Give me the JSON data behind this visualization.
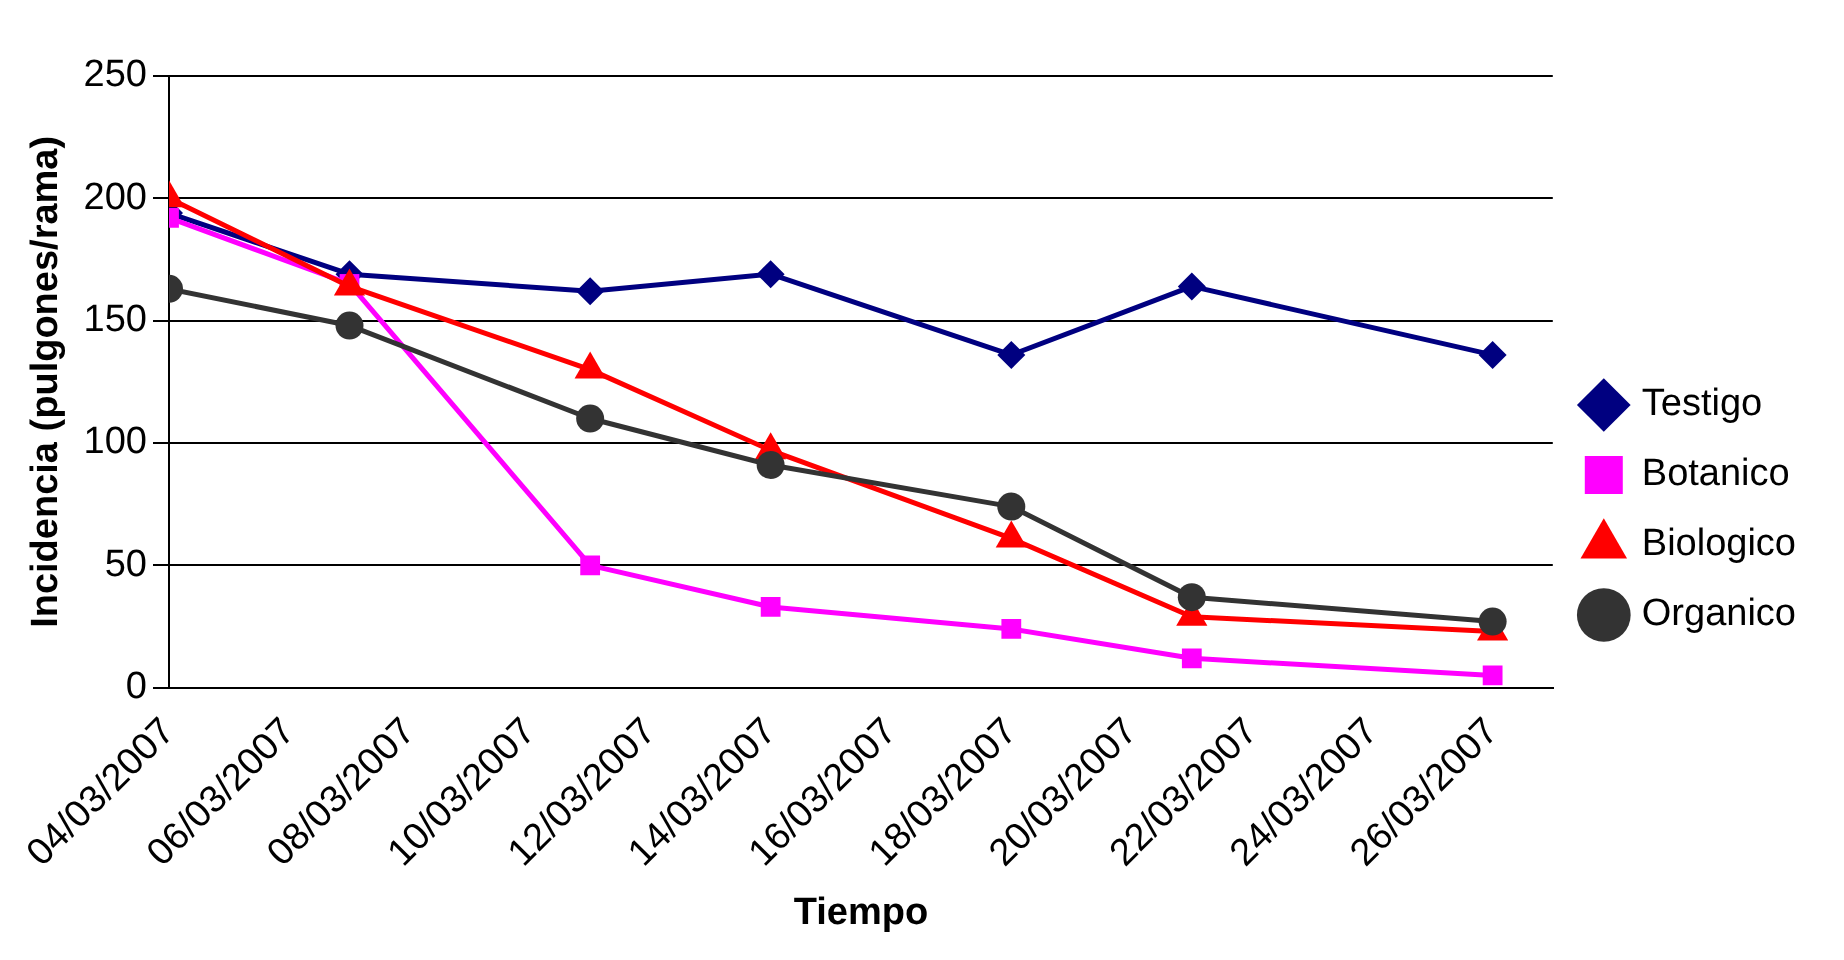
{
  "chart_data": {
    "type": "line",
    "xlabel": "Tiempo",
    "ylabel": "Incidencia (pulgones/rama)",
    "x": [
      "2007-03-04",
      "2007-03-07",
      "2007-03-11",
      "2007-03-14",
      "2007-03-18",
      "2007-03-21",
      "2007-03-26"
    ],
    "series": [
      {
        "name": "Testigo",
        "color": "#000080",
        "marker": "diamond",
        "values": [
          194,
          169,
          162,
          169,
          136,
          164,
          136
        ]
      },
      {
        "name": "Botanico",
        "color": "#ff00ff",
        "marker": "square",
        "values": [
          192,
          165,
          50,
          33,
          24,
          12,
          5
        ]
      },
      {
        "name": "Biologico",
        "color": "#ff0000",
        "marker": "triangle",
        "values": [
          200,
          164,
          130,
          97,
          61,
          29,
          23
        ]
      },
      {
        "name": "Organico",
        "color": "#333333",
        "marker": "circle",
        "values": [
          163,
          148,
          110,
          91,
          74,
          37,
          27
        ]
      }
    ],
    "xlim": [
      "2007-03-04",
      "2007-03-27"
    ],
    "xticks": [
      {
        "value": "2007-03-04",
        "label": "04/03/2007"
      },
      {
        "value": "2007-03-06",
        "label": "06/03/2007"
      },
      {
        "value": "2007-03-08",
        "label": "08/03/2007"
      },
      {
        "value": "2007-03-10",
        "label": "10/03/2007"
      },
      {
        "value": "2007-03-12",
        "label": "12/03/2007"
      },
      {
        "value": "2007-03-14",
        "label": "14/03/2007"
      },
      {
        "value": "2007-03-16",
        "label": "16/03/2007"
      },
      {
        "value": "2007-03-18",
        "label": "18/03/2007"
      },
      {
        "value": "2007-03-20",
        "label": "20/03/2007"
      },
      {
        "value": "2007-03-22",
        "label": "22/03/2007"
      },
      {
        "value": "2007-03-24",
        "label": "24/03/2007"
      },
      {
        "value": "2007-03-26",
        "label": "26/03/2007"
      }
    ],
    "ylim": [
      0,
      250
    ],
    "yticks": [
      0,
      50,
      100,
      150,
      200,
      250
    ],
    "grid": "y",
    "legend": "right",
    "line_style": "solid"
  }
}
